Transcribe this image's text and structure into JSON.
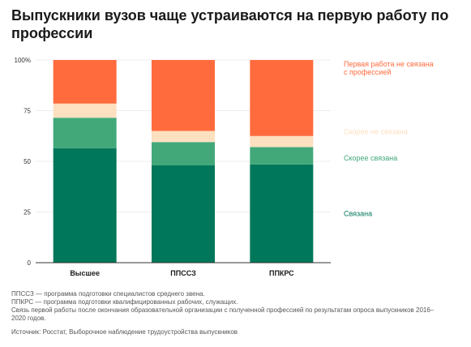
{
  "header": {
    "title": "Выпускники вузов чаще устраиваются на первую работу по профессии"
  },
  "chart_data": {
    "type": "bar",
    "stacked": true,
    "categories": [
      "Высшее",
      "ППССЗ",
      "ППКРС"
    ],
    "yticks": [
      "0",
      "25",
      "50",
      "75",
      "100%"
    ],
    "ylim": [
      0,
      100
    ],
    "grid": true,
    "legend_position": "right",
    "series": [
      {
        "name": "Связана",
        "color": "#00775a",
        "values": [
          56.5,
          48,
          48.5
        ]
      },
      {
        "name": "Скорее связана",
        "color": "#42a87a",
        "values": [
          15,
          11.5,
          8.5
        ]
      },
      {
        "name": "Скорее не связана",
        "color": "#fde0bf",
        "values": [
          7,
          5.5,
          5.5
        ]
      },
      {
        "name": "Первая работа не связана с профессией",
        "color": "#ff6b3d",
        "values": [
          21.5,
          35,
          37.5
        ]
      }
    ]
  },
  "notes": [
    "ППССЗ — программа подготовки специалистов среднего звена.",
    "ППКРС — программа подготовки квалифицированных рабочих, служащих.",
    "Связь первой работы после окончания образовательной организации с полученной профессией по результатам опроса выпускников 2016–2020 годов."
  ],
  "source": "Источник: Росстат, Выборочное наблюдение трудоустройства выпускников"
}
